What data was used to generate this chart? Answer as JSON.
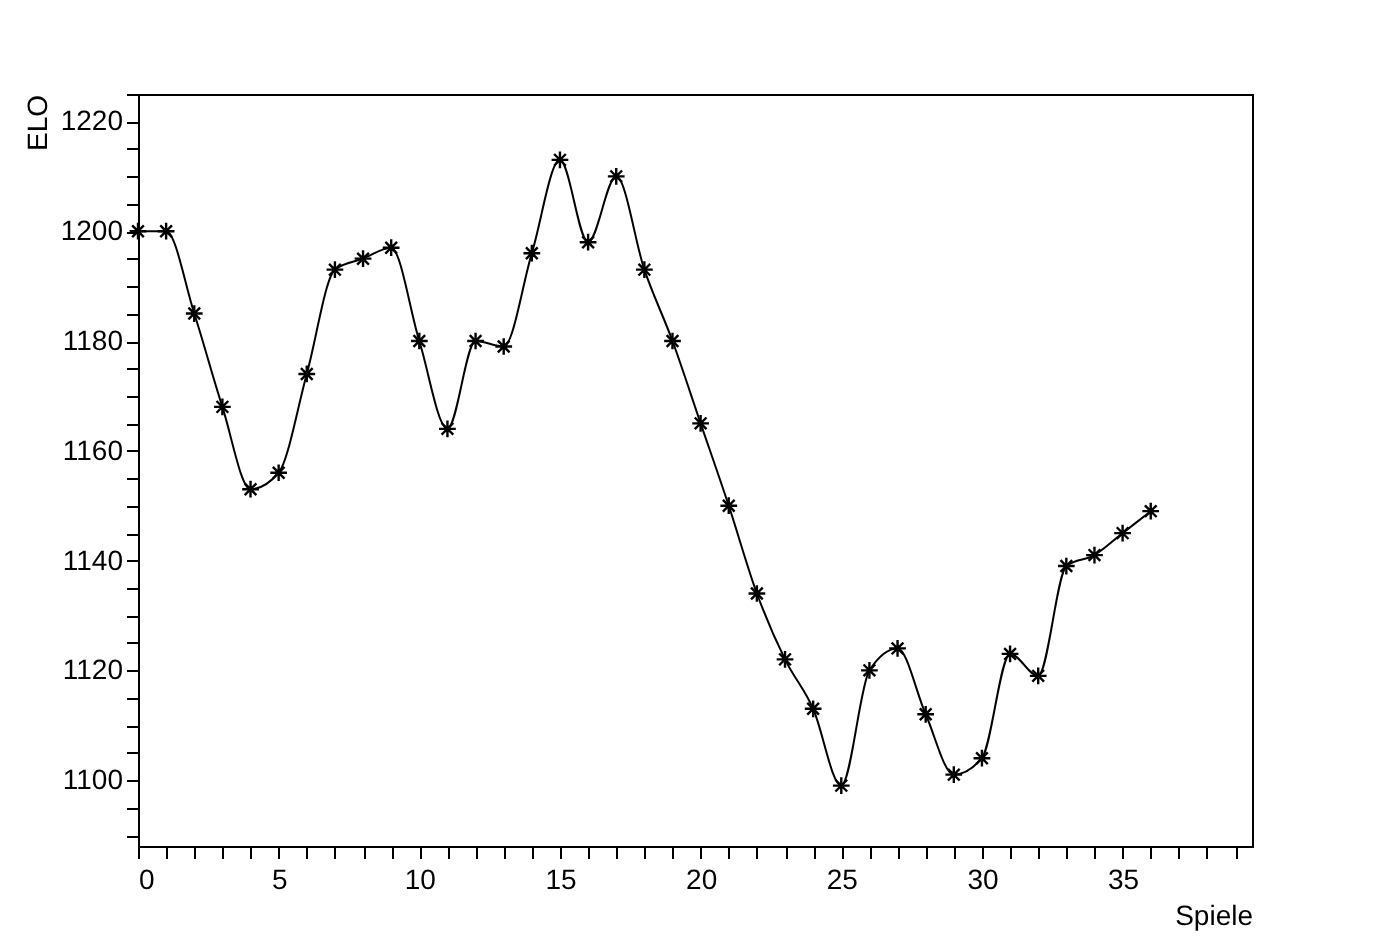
{
  "chart_data": {
    "type": "line",
    "xlabel": "Spiele",
    "ylabel": "ELO",
    "x": [
      0,
      1,
      2,
      3,
      4,
      5,
      6,
      7,
      8,
      9,
      10,
      11,
      12,
      13,
      14,
      15,
      16,
      17,
      18,
      19,
      20,
      21,
      22,
      23,
      24,
      25,
      26,
      27,
      28,
      29,
      30,
      31,
      32,
      33,
      34,
      35,
      36
    ],
    "series": [
      {
        "color": "#000000",
        "values": [
          1200,
          1200,
          1185,
          1168,
          1153,
          1156,
          1174,
          1193,
          1195,
          1197,
          1180,
          1164,
          1180,
          1179,
          1196,
          1213,
          1198,
          1210,
          1193,
          1180,
          1165,
          1150,
          1134,
          1122,
          1113,
          1099,
          1120,
          1124,
          1112,
          1101,
          1104,
          1123,
          1119,
          1139,
          1141,
          1145,
          1149
        ]
      }
    ],
    "xlim": [
      0,
      39.6
    ],
    "xticks": [
      0,
      {
        "value": 1,
        "label": null
      },
      {
        "value": 2,
        "label": null
      },
      {
        "value": 3,
        "label": null
      },
      {
        "value": 4,
        "label": null
      },
      5,
      {
        "value": 6,
        "label": null
      },
      {
        "value": 7,
        "label": null
      },
      {
        "value": 8,
        "label": null
      },
      {
        "value": 9,
        "label": null
      },
      10,
      {
        "value": 11,
        "label": null
      },
      {
        "value": 12,
        "label": null
      },
      {
        "value": 13,
        "label": null
      },
      {
        "value": 14,
        "label": null
      },
      15,
      {
        "value": 16,
        "label": null
      },
      {
        "value": 17,
        "label": null
      },
      {
        "value": 18,
        "label": null
      },
      {
        "value": 19,
        "label": null
      },
      20,
      {
        "value": 21,
        "label": null
      },
      {
        "value": 22,
        "label": null
      },
      {
        "value": 23,
        "label": null
      },
      {
        "value": 24,
        "label": null
      },
      25,
      {
        "value": 26,
        "label": null
      },
      {
        "value": 27,
        "label": null
      },
      {
        "value": 28,
        "label": null
      },
      {
        "value": 29,
        "label": null
      },
      30,
      {
        "value": 31,
        "label": null
      },
      {
        "value": 32,
        "label": null
      },
      {
        "value": 33,
        "label": null
      },
      {
        "value": 34,
        "label": null
      },
      35,
      {
        "value": 36,
        "label": null
      },
      {
        "value": 37,
        "label": null
      },
      {
        "value": 38,
        "label": null
      },
      {
        "value": 39,
        "label": null
      }
    ],
    "ylim": [
      1088,
      1225
    ],
    "yticks": [
      {
        "value": 1090,
        "label": null
      },
      {
        "value": 1095,
        "label": null
      },
      1100,
      {
        "value": 1105,
        "label": null
      },
      {
        "value": 1110,
        "label": null
      },
      {
        "value": 1115,
        "label": null
      },
      1120,
      {
        "value": 1125,
        "label": null
      },
      {
        "value": 1130,
        "label": null
      },
      {
        "value": 1135,
        "label": null
      },
      1140,
      {
        "value": 1145,
        "label": null
      },
      {
        "value": 1150,
        "label": null
      },
      {
        "value": 1155,
        "label": null
      },
      1160,
      {
        "value": 1165,
        "label": null
      },
      {
        "value": 1170,
        "label": null
      },
      {
        "value": 1175,
        "label": null
      },
      1180,
      {
        "value": 1185,
        "label": null
      },
      {
        "value": 1190,
        "label": null
      },
      {
        "value": 1195,
        "label": null
      },
      1200,
      {
        "value": 1205,
        "label": null
      },
      {
        "value": 1210,
        "label": null
      },
      {
        "value": 1215,
        "label": null
      },
      1220,
      {
        "value": 1225,
        "label": null
      }
    ],
    "grid": false,
    "marker": "cross",
    "line_style": "solid"
  }
}
